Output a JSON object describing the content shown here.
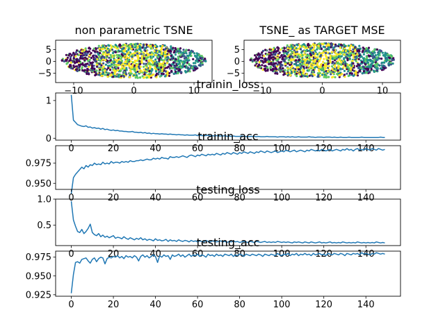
{
  "chart_data": [
    {
      "id": "scatter_left",
      "type": "scatter",
      "title": "non parametric TSNE",
      "xlim": [
        -13,
        13
      ],
      "ylim": [
        -9,
        9
      ],
      "xticks": [
        -10,
        0,
        10
      ],
      "xtick_labels": [
        "−10",
        "0",
        "10"
      ],
      "yticks": [
        -5,
        0,
        5
      ],
      "ytick_labels": [
        "−5",
        "0",
        "5"
      ],
      "colormap": [
        "#440154",
        "#3b528b",
        "#21918c",
        "#5ec962",
        "#fde725"
      ]
    },
    {
      "id": "scatter_right",
      "type": "scatter",
      "title": "TSNE_ as TARGET MSE",
      "xlim": [
        -13,
        13
      ],
      "ylim": [
        -9,
        9
      ],
      "xticks": [
        -10,
        0,
        10
      ],
      "xtick_labels": [
        "−10",
        "0",
        "10"
      ],
      "yticks": [
        -5,
        0,
        5
      ],
      "ytick_labels": [
        "−5",
        "0",
        "5"
      ],
      "colormap": [
        "#440154",
        "#3b528b",
        "#21918c",
        "#5ec962",
        "#fde725"
      ]
    },
    {
      "id": "trainin_loss",
      "type": "line",
      "title": "trainin_loss",
      "xlim": [
        -7.45,
        156.45
      ],
      "ylim": [
        -0.05,
        1.2
      ],
      "xticks": [
        0,
        20,
        40,
        60,
        80,
        100,
        120,
        140
      ],
      "xtick_labels": [
        "0",
        "20",
        "40",
        "60",
        "80",
        "100",
        "120",
        "140"
      ],
      "yticks": [
        0,
        1
      ],
      "ytick_labels": [
        "0",
        "1"
      ],
      "color": "#1f77b4",
      "x_start": 0,
      "x_step": 1,
      "values": [
        1.15,
        0.48,
        0.42,
        0.36,
        0.34,
        0.32,
        0.31,
        0.33,
        0.29,
        0.3,
        0.27,
        0.28,
        0.26,
        0.27,
        0.24,
        0.26,
        0.23,
        0.24,
        0.22,
        0.21,
        0.22,
        0.2,
        0.21,
        0.19,
        0.19,
        0.18,
        0.18,
        0.17,
        0.17,
        0.18,
        0.16,
        0.16,
        0.15,
        0.16,
        0.14,
        0.15,
        0.13,
        0.14,
        0.12,
        0.13,
        0.12,
        0.12,
        0.11,
        0.12,
        0.11,
        0.11,
        0.1,
        0.11,
        0.1,
        0.1,
        0.09,
        0.1,
        0.09,
        0.09,
        0.08,
        0.09,
        0.08,
        0.08,
        0.08,
        0.09,
        0.07,
        0.08,
        0.07,
        0.07,
        0.07,
        0.08,
        0.06,
        0.07,
        0.06,
        0.07,
        0.06,
        0.06,
        0.06,
        0.07,
        0.05,
        0.06,
        0.05,
        0.06,
        0.05,
        0.05,
        0.05,
        0.06,
        0.05,
        0.05,
        0.04,
        0.05,
        0.05,
        0.05,
        0.04,
        0.05,
        0.04,
        0.04,
        0.04,
        0.05,
        0.04,
        0.04,
        0.04,
        0.04,
        0.03,
        0.04,
        0.04,
        0.04,
        0.03,
        0.04,
        0.03,
        0.04,
        0.03,
        0.03,
        0.04,
        0.03,
        0.03,
        0.03,
        0.03,
        0.04,
        0.03,
        0.03,
        0.02,
        0.03,
        0.03,
        0.03,
        0.02,
        0.03,
        0.03,
        0.03,
        0.02,
        0.03,
        0.02,
        0.02,
        0.03,
        0.02,
        0.02,
        0.02,
        0.03,
        0.02,
        0.02,
        0.02,
        0.02,
        0.02,
        0.03,
        0.02,
        0.02,
        0.02,
        0.02,
        0.02,
        0.02,
        0.02,
        0.02,
        0.03,
        0.02,
        0.02
      ]
    },
    {
      "id": "trainin_acc",
      "type": "line",
      "title": "trainin_acc",
      "xlim": [
        -7.45,
        156.45
      ],
      "ylim": [
        0.9425,
        0.9965
      ],
      "xticks": [
        0,
        20,
        40,
        60,
        80,
        100,
        120,
        140
      ],
      "xtick_labels": [
        "0",
        "20",
        "40",
        "60",
        "80",
        "100",
        "120",
        "140"
      ],
      "yticks": [
        0.95,
        0.975
      ],
      "ytick_labels": [
        "0.950",
        "0.975"
      ],
      "color": "#1f77b4",
      "x_start": 0,
      "x_step": 1,
      "values": [
        0.937,
        0.957,
        0.961,
        0.964,
        0.967,
        0.97,
        0.968,
        0.972,
        0.97,
        0.973,
        0.972,
        0.975,
        0.973,
        0.974,
        0.973,
        0.976,
        0.974,
        0.975,
        0.974,
        0.977,
        0.975,
        0.976,
        0.976,
        0.975,
        0.977,
        0.976,
        0.977,
        0.976,
        0.978,
        0.977,
        0.977,
        0.978,
        0.978,
        0.979,
        0.978,
        0.979,
        0.98,
        0.979,
        0.979,
        0.981,
        0.98,
        0.981,
        0.98,
        0.982,
        0.981,
        0.981,
        0.98,
        0.983,
        0.982,
        0.982,
        0.983,
        0.982,
        0.983,
        0.984,
        0.983,
        0.982,
        0.984,
        0.985,
        0.984,
        0.983,
        0.985,
        0.984,
        0.986,
        0.985,
        0.984,
        0.986,
        0.985,
        0.986,
        0.985,
        0.987,
        0.986,
        0.985,
        0.987,
        0.986,
        0.988,
        0.987,
        0.986,
        0.988,
        0.987,
        0.986,
        0.988,
        0.987,
        0.989,
        0.988,
        0.987,
        0.989,
        0.988,
        0.987,
        0.989,
        0.988,
        0.99,
        0.989,
        0.988,
        0.99,
        0.989,
        0.988,
        0.989,
        0.99,
        0.988,
        0.989,
        0.99,
        0.989,
        0.991,
        0.99,
        0.989,
        0.99,
        0.991,
        0.989,
        0.99,
        0.991,
        0.99,
        0.989,
        0.991,
        0.99,
        0.992,
        0.991,
        0.99,
        0.991,
        0.99,
        0.992,
        0.991,
        0.99,
        0.991,
        0.992,
        0.99,
        0.991,
        0.992,
        0.991,
        0.99,
        0.992,
        0.991,
        0.993,
        0.991,
        0.992,
        0.99,
        0.992,
        0.993,
        0.991,
        0.992,
        0.991,
        0.993,
        0.992,
        0.991,
        0.993,
        0.992,
        0.991,
        0.993,
        0.992,
        0.991,
        0.992
      ]
    },
    {
      "id": "testing_loss",
      "type": "line",
      "title": "testing loss",
      "xlim": [
        -7.45,
        156.45
      ],
      "ylim": [
        0.11,
        1.0
      ],
      "xticks": [
        0,
        20,
        40,
        60,
        80,
        100,
        120,
        140
      ],
      "xtick_labels": [
        "0",
        "20",
        "40",
        "60",
        "80",
        "100",
        "120",
        "140"
      ],
      "yticks": [
        0.5,
        1.0
      ],
      "ytick_labels": [
        "0.5",
        "1.0"
      ],
      "color": "#1f77b4",
      "x_start": 0,
      "x_step": 1,
      "values": [
        0.96,
        0.6,
        0.48,
        0.38,
        0.36,
        0.42,
        0.34,
        0.38,
        0.44,
        0.52,
        0.36,
        0.32,
        0.3,
        0.34,
        0.28,
        0.31,
        0.27,
        0.29,
        0.26,
        0.28,
        0.3,
        0.25,
        0.27,
        0.26,
        0.24,
        0.28,
        0.25,
        0.23,
        0.26,
        0.24,
        0.22,
        0.25,
        0.23,
        0.26,
        0.22,
        0.24,
        0.21,
        0.23,
        0.22,
        0.2,
        0.24,
        0.21,
        0.22,
        0.2,
        0.21,
        0.23,
        0.19,
        0.22,
        0.2,
        0.21,
        0.19,
        0.22,
        0.2,
        0.19,
        0.21,
        0.2,
        0.18,
        0.21,
        0.19,
        0.2,
        0.18,
        0.2,
        0.19,
        0.18,
        0.21,
        0.19,
        0.18,
        0.2,
        0.19,
        0.18,
        0.19,
        0.2,
        0.18,
        0.19,
        0.17,
        0.19,
        0.18,
        0.2,
        0.18,
        0.19,
        0.17,
        0.18,
        0.19,
        0.18,
        0.17,
        0.19,
        0.18,
        0.17,
        0.19,
        0.18,
        0.17,
        0.18,
        0.19,
        0.17,
        0.18,
        0.17,
        0.18,
        0.17,
        0.19,
        0.18,
        0.17,
        0.18,
        0.17,
        0.18,
        0.17,
        0.16,
        0.18,
        0.17,
        0.18,
        0.17,
        0.16,
        0.18,
        0.17,
        0.16,
        0.18,
        0.17,
        0.16,
        0.17,
        0.18,
        0.16,
        0.17,
        0.16,
        0.17,
        0.18,
        0.16,
        0.17,
        0.16,
        0.17,
        0.16,
        0.18,
        0.17,
        0.16,
        0.17,
        0.16,
        0.17,
        0.16,
        0.18,
        0.17,
        0.16,
        0.17,
        0.16,
        0.17,
        0.16,
        0.17,
        0.16,
        0.18,
        0.17,
        0.16,
        0.17,
        0.16
      ]
    },
    {
      "id": "testing_acc",
      "type": "line",
      "title": "testing_acc",
      "xlim": [
        -7.45,
        156.45
      ],
      "ylim": [
        0.923,
        0.983
      ],
      "xticks": [
        0,
        20,
        40,
        60,
        80,
        100,
        120,
        140
      ],
      "xtick_labels": [
        "0",
        "20",
        "40",
        "60",
        "80",
        "100",
        "120",
        "140"
      ],
      "yticks": [
        0.925,
        0.95,
        0.975
      ],
      "ytick_labels": [
        "0.925",
        "0.950",
        "0.975"
      ],
      "color": "#1f77b4",
      "x_start": 0,
      "x_step": 1,
      "values": [
        0.927,
        0.952,
        0.968,
        0.969,
        0.967,
        0.972,
        0.973,
        0.974,
        0.97,
        0.967,
        0.972,
        0.974,
        0.969,
        0.973,
        0.975,
        0.974,
        0.966,
        0.973,
        0.975,
        0.974,
        0.976,
        0.975,
        0.977,
        0.974,
        0.976,
        0.973,
        0.977,
        0.975,
        0.976,
        0.974,
        0.977,
        0.975,
        0.97,
        0.976,
        0.978,
        0.975,
        0.977,
        0.974,
        0.976,
        0.978,
        0.976,
        0.968,
        0.977,
        0.975,
        0.978,
        0.976,
        0.977,
        0.972,
        0.978,
        0.976,
        0.977,
        0.979,
        0.976,
        0.978,
        0.975,
        0.977,
        0.979,
        0.976,
        0.978,
        0.977,
        0.979,
        0.976,
        0.978,
        0.977,
        0.975,
        0.979,
        0.977,
        0.978,
        0.976,
        0.979,
        0.977,
        0.978,
        0.976,
        0.979,
        0.978,
        0.977,
        0.979,
        0.976,
        0.978,
        0.977,
        0.979,
        0.978,
        0.976,
        0.979,
        0.978,
        0.977,
        0.979,
        0.978,
        0.977,
        0.979,
        0.978,
        0.976,
        0.979,
        0.978,
        0.977,
        0.979,
        0.978,
        0.977,
        0.98,
        0.978,
        0.977,
        0.979,
        0.978,
        0.98,
        0.977,
        0.979,
        0.978,
        0.98,
        0.977,
        0.979,
        0.978,
        0.98,
        0.978,
        0.979,
        0.977,
        0.98,
        0.978,
        0.979,
        0.98,
        0.978,
        0.979,
        0.977,
        0.98,
        0.979,
        0.978,
        0.98,
        0.979,
        0.978,
        0.98,
        0.979,
        0.977,
        0.98,
        0.979,
        0.978,
        0.98,
        0.979,
        0.98,
        0.978,
        0.981,
        0.979,
        0.98,
        0.979,
        0.978,
        0.98,
        0.979,
        0.981,
        0.98,
        0.979,
        0.98,
        0.979
      ]
    }
  ]
}
